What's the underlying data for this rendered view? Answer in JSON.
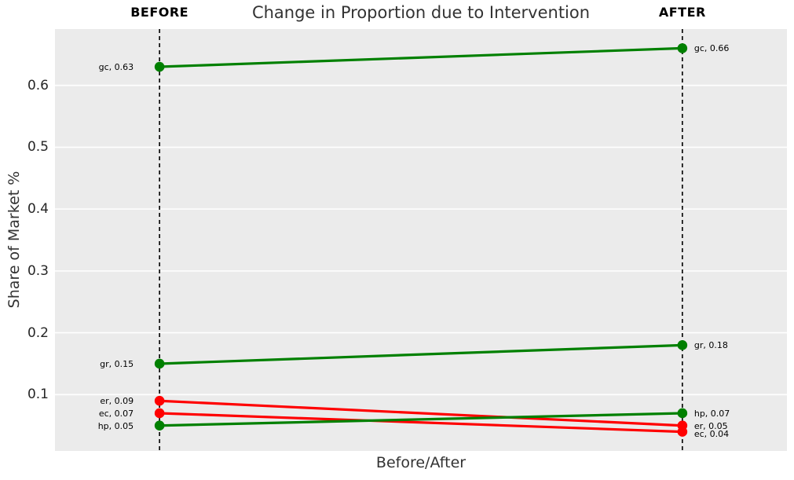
{
  "chart_data": {
    "type": "line",
    "subtype": "slope-chart",
    "title": "Change in Proportion due to Intervention",
    "xlabel": "Before/After",
    "ylabel": "Share of Market %",
    "columns": [
      "BEFORE",
      "AFTER"
    ],
    "yticks": [
      0.1,
      0.2,
      0.3,
      0.4,
      0.5,
      0.6
    ],
    "ylim": [
      0.009,
      0.691
    ],
    "xlim": [
      -0.2,
      1.2
    ],
    "grid": "horizontal-white-on-gray",
    "legend": "none",
    "series": [
      {
        "name": "gc",
        "before": 0.63,
        "after": 0.66,
        "color": "#008000",
        "label_before": "gc, 0.63",
        "label_after": "gc, 0.66"
      },
      {
        "name": "gr",
        "before": 0.15,
        "after": 0.18,
        "color": "#008000",
        "label_before": "gr, 0.15",
        "label_after": "gr, 0.18"
      },
      {
        "name": "er",
        "before": 0.09,
        "after": 0.05,
        "color": "#ff0000",
        "label_before": "er, 0.09",
        "label_after": "er, 0.05"
      },
      {
        "name": "ec",
        "before": 0.07,
        "after": 0.04,
        "color": "#ff0000",
        "label_before": "ec, 0.07",
        "label_after": "ec, 0.04"
      },
      {
        "name": "hp",
        "before": 0.05,
        "after": 0.07,
        "color": "#008000",
        "label_before": "hp, 0.05",
        "label_after": "hp, 0.07"
      }
    ],
    "colors": {
      "figure_bg": "#ffffff",
      "plot_bg": "#ebebeb",
      "grid": "#ffffff",
      "dashed_line": "#000000",
      "title_text": "#333333",
      "tick_text": "#262626",
      "point_label_text": "#000000",
      "increase": "#008000",
      "decrease": "#ff0000"
    }
  }
}
